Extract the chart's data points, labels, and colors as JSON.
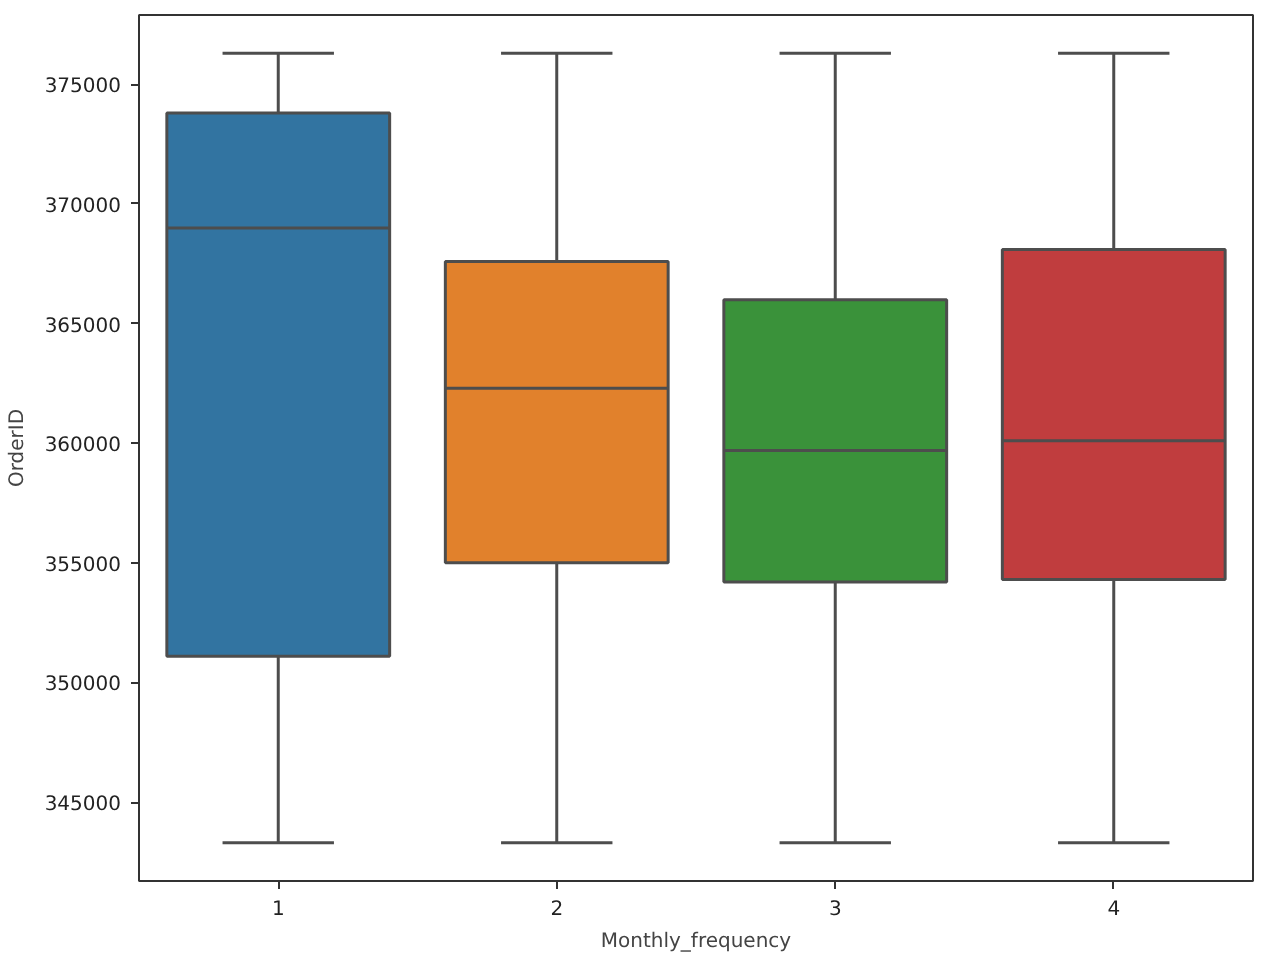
{
  "chart_data": {
    "type": "box",
    "xlabel": "Monthly_frequency",
    "ylabel": "OrderID",
    "categories": [
      "1",
      "2",
      "3",
      "4"
    ],
    "colors": [
      "#3274a1",
      "#e1812c",
      "#3a923a",
      "#c03d3e"
    ],
    "boxes": [
      {
        "low": 343300,
        "q1": 351100,
        "median": 369000,
        "q3": 373800,
        "high": 376300
      },
      {
        "low": 343300,
        "q1": 355000,
        "median": 362300,
        "q3": 367600,
        "high": 376300
      },
      {
        "low": 343300,
        "q1": 354200,
        "median": 359700,
        "q3": 366000,
        "high": 376300
      },
      {
        "low": 343300,
        "q1": 354300,
        "median": 360100,
        "q3": 368100,
        "high": 376300
      }
    ],
    "ylim": [
      341700,
      377900
    ],
    "yticks": [
      345000,
      350000,
      355000,
      360000,
      365000,
      370000,
      375000
    ],
    "grid": false
  }
}
